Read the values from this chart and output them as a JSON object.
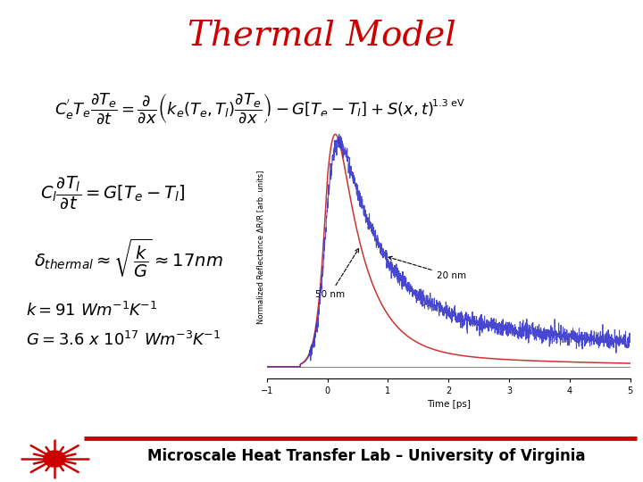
{
  "title": "Thermal Model",
  "title_color": "#CC0000",
  "title_fontsize": 28,
  "bg_color": "#FFFFFF",
  "eq1": "$C_e^{'}T_e\\dfrac{\\partial T_e}{\\partial t} = \\dfrac{\\partial}{\\partial x}\\left(k_e(T_e,T_l)\\dfrac{\\partial T_e}{\\partial x}\\right) - G[T_e - T_l] + S(x,t)$",
  "eq2": "$C_l\\dfrac{\\partial T_l}{\\partial t} = G[T_e - T_l]$",
  "eq3": "$\\delta_{thermal} \\approx \\sqrt{\\dfrac{k}{G}} \\approx 17nm$",
  "label_k": "$k = 91$ Wm$^{-1}$K$^{-1}$",
  "label_G": "$G = 3.6$ x $10^{17}$ Wm$^{-3}$K$^{-1}$",
  "footer": "Microscale Heat Transfer Lab – University of Virginia",
  "footer_color": "#000000",
  "footer_fontsize": 12,
  "label_fontsize": 13,
  "eq1_fontsize": 13,
  "eq2_fontsize": 14,
  "eq3_fontsize": 14,
  "plot_annotation_1_3eV": "1.3 eV",
  "plot_annotation_20nm": "20 nm",
  "plot_annotation_50nm": "50 nm",
  "plot_xlabel": "Time [ps]",
  "plot_ylabel": "Normalized Reflectance ΔR/R [arb. units]",
  "line_color_blue": "#3333CC",
  "line_color_red": "#CC3333",
  "footer_line_color": "#CC0000",
  "plot_bg": "#FFFFFF"
}
